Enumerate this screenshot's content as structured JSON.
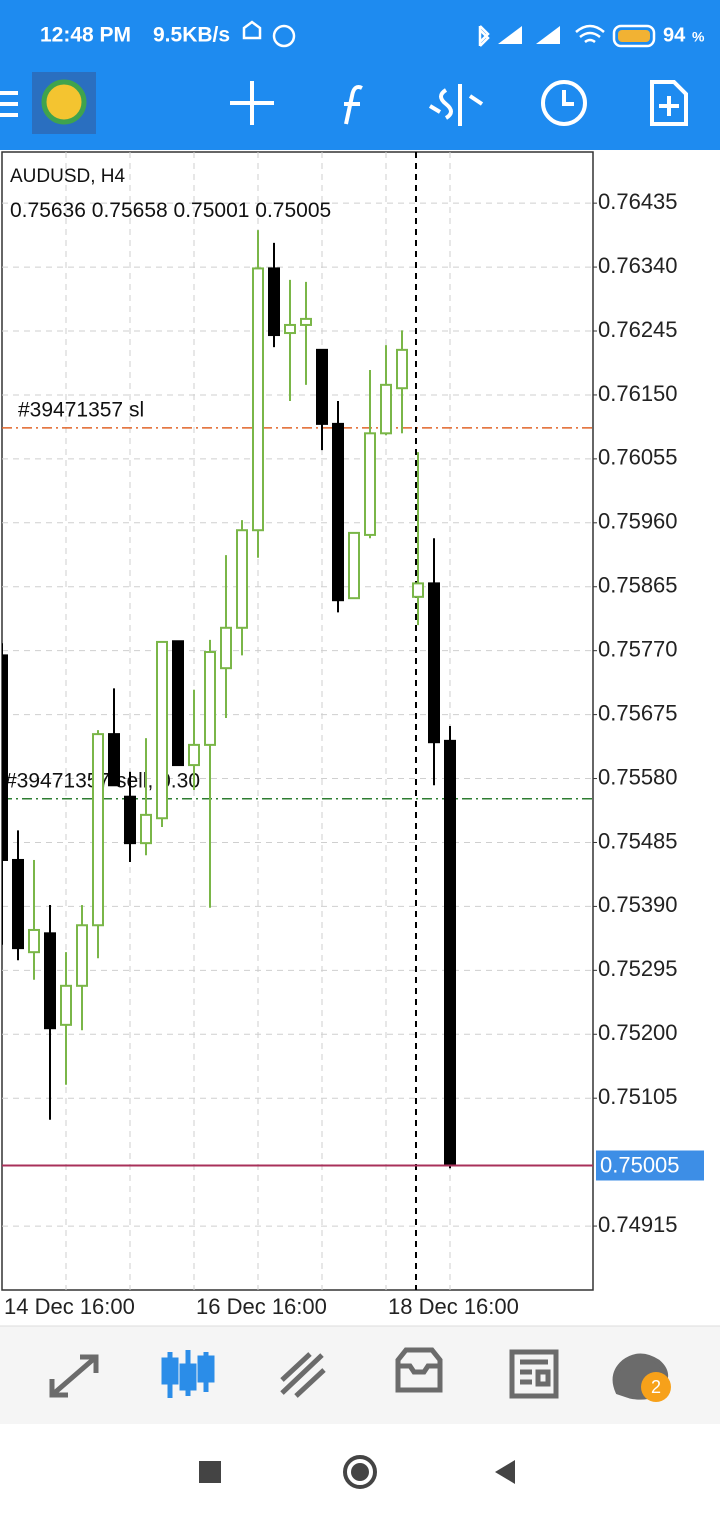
{
  "status_bar": {
    "time": "12:48 PM",
    "speed": "9.5KB/s",
    "battery": "94",
    "battery_unit": "%"
  },
  "chart_data": {
    "type": "candlestick",
    "symbol": "AUDUSD, H4",
    "categories": [
      "14 Dec 16:00",
      null,
      null,
      null,
      null,
      null,
      null,
      null,
      null,
      null,
      null,
      null,
      "16 Dec 16:00",
      null,
      null,
      null,
      null,
      null,
      null,
      null,
      null,
      null,
      null,
      null,
      "18 Dec 16:00",
      null,
      null,
      null,
      null
    ],
    "open": [
      0.75763,
      0.75459,
      0.75322,
      0.7535,
      0.75214,
      0.75272,
      0.75362,
      0.75646,
      0.75553,
      0.75484,
      0.75521,
      0.75784,
      0.756,
      0.7563,
      0.75744,
      0.75804,
      0.75949,
      0.76338,
      0.76242,
      0.76254,
      0.76217,
      0.76107,
      0.75848,
      0.75942,
      0.76093,
      0.7616,
      0.7585,
      0.7587,
      0.75636
    ],
    "high": [
      0.75781,
      0.75503,
      0.75459,
      0.75392,
      0.75322,
      0.75392,
      0.75652,
      0.75714,
      0.7559,
      0.7564,
      0.75783,
      0.75784,
      0.75712,
      0.75786,
      0.75912,
      0.75964,
      0.76395,
      0.76376,
      0.76321,
      0.76318,
      0.76217,
      0.76141,
      0.75945,
      0.76187,
      0.76224,
      0.76246,
      0.76065,
      0.75937,
      0.75658
    ],
    "low": [
      0.75333,
      0.7531,
      0.75281,
      0.75073,
      0.75125,
      0.75206,
      0.75313,
      0.7557,
      0.75456,
      0.75466,
      0.75508,
      0.756,
      0.75563,
      0.75388,
      0.7567,
      0.75763,
      0.75908,
      0.76221,
      0.76141,
      0.76165,
      0.76068,
      0.75827,
      0.75848,
      0.75937,
      0.7609,
      0.76093,
      0.75808,
      0.7557,
      0.75001
    ],
    "close": [
      0.75459,
      0.75328,
      0.75355,
      0.75209,
      0.75272,
      0.75362,
      0.75646,
      0.7557,
      0.75484,
      0.75526,
      0.75783,
      0.756,
      0.7563,
      0.75768,
      0.75804,
      0.75949,
      0.76338,
      0.76239,
      0.76254,
      0.76263,
      0.76107,
      0.75845,
      0.75945,
      0.76093,
      0.76165,
      0.76217,
      0.7587,
      0.75634,
      0.75005
    ],
    "up_color": "#7ab648",
    "down_color": "#000000",
    "last_price_color": "#3d8ee6",
    "ylim": [
      0.7482,
      0.76511
    ],
    "yticks": [
      0.76435,
      {
        "value": 0.7634,
        "label": "0.76340"
      },
      0.76245,
      {
        "value": 0.7615,
        "label": "0.76150"
      },
      0.76055,
      {
        "value": 0.7596,
        "label": "0.75960"
      },
      0.75865,
      {
        "value": 0.7577,
        "label": "0.75770"
      },
      0.75675,
      {
        "value": 0.7558,
        "label": "0.75580"
      },
      0.75485,
      {
        "value": 0.7539,
        "label": "0.75390"
      },
      0.75295,
      {
        "value": 0.752,
        "label": "0.75200"
      },
      0.75105,
      0.74915
    ],
    "grid": true,
    "levels": [
      {
        "label": "#39471357 sl",
        "value": 0.76101,
        "color": "#e0662a"
      },
      {
        "label": "#39471357 sell, 0.30",
        "value": 0.7555,
        "color": "#2e7d32"
      }
    ]
  },
  "bottom_nav": {
    "badge": "2"
  }
}
